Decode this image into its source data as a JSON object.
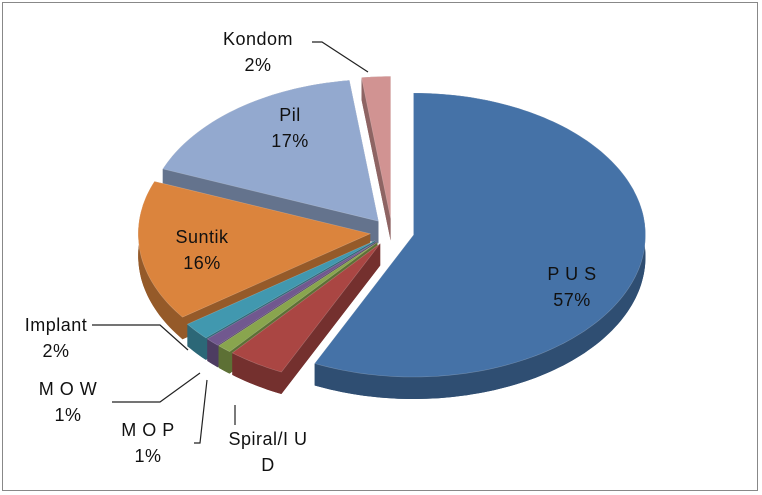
{
  "chart_data": {
    "type": "pie",
    "categories": [
      "P U S",
      "Spiral/I U D",
      "M O P",
      "M O W",
      "Implant",
      "Suntik",
      "Pil",
      "Kondom"
    ],
    "values": [
      57,
      4,
      1,
      1,
      2,
      16,
      17,
      2
    ],
    "value_labels": [
      "57%",
      null,
      "1%",
      "1%",
      "2%",
      "16%",
      "17%",
      "2%"
    ],
    "colors": [
      "#4572a7",
      "#aa4643",
      "#89a54e",
      "#71588f",
      "#4198af",
      "#db843d",
      "#93a9cf",
      "#d19392"
    ]
  }
}
